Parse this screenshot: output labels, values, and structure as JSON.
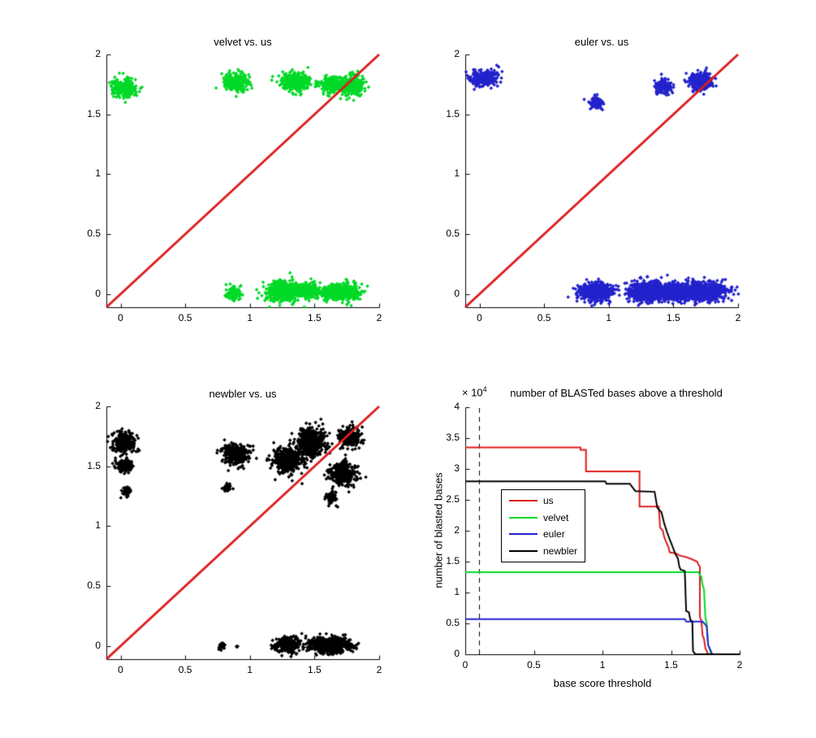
{
  "colors": {
    "us": "#dd1c1c",
    "velvet": "#00d926",
    "euler": "#2222cc",
    "newbler": "#000000",
    "axis": "#000000",
    "diagonal": "#dd1c1c",
    "background": "#ffffff"
  },
  "chart_data": [
    {
      "id": "velvet_vs_us",
      "type": "scatter",
      "title": "velvet vs. us",
      "color_key": "velvet",
      "xlim": [
        -0.11,
        2
      ],
      "ylim": [
        -0.11,
        2
      ],
      "xticks": [
        "0",
        "0.5",
        "1",
        "1.5",
        "2"
      ],
      "yticks": [
        "0",
        "0.5",
        "1",
        "1.5",
        "2"
      ],
      "diagonal_line": {
        "from": [
          -0.11,
          -0.11
        ],
        "to": [
          2,
          2
        ],
        "color_key": "diagonal"
      },
      "clusters": [
        {
          "cx": 0.03,
          "cy": 1.72,
          "sx": 0.045,
          "sy": 0.038,
          "n": 240
        },
        {
          "cx": 0.89,
          "cy": 1.77,
          "sx": 0.042,
          "sy": 0.038,
          "n": 270
        },
        {
          "cx": 1.35,
          "cy": 1.77,
          "sx": 0.055,
          "sy": 0.036,
          "n": 310
        },
        {
          "cx": 1.63,
          "cy": 1.75,
          "sx": 0.04,
          "sy": 0.032,
          "n": 230
        },
        {
          "cx": 1.79,
          "cy": 1.74,
          "sx": 0.045,
          "sy": 0.042,
          "n": 250
        },
        {
          "cx": 0.88,
          "cy": 0.01,
          "sx": 0.03,
          "sy": 0.026,
          "n": 140
        },
        {
          "cx": 1.28,
          "cy": 0.02,
          "sx": 0.075,
          "sy": 0.04,
          "n": 600
        },
        {
          "cx": 1.46,
          "cy": 0.03,
          "sx": 0.04,
          "sy": 0.032,
          "n": 160
        },
        {
          "cx": 1.7,
          "cy": 0.02,
          "sx": 0.075,
          "sy": 0.034,
          "n": 500
        }
      ]
    },
    {
      "id": "euler_vs_us",
      "type": "scatter",
      "title": "euler vs. us",
      "color_key": "euler",
      "xlim": [
        -0.11,
        2
      ],
      "ylim": [
        -0.11,
        2
      ],
      "xticks": [
        "0",
        "0.5",
        "1",
        "1.5",
        "2"
      ],
      "yticks": [
        "0",
        "0.5",
        "1",
        "1.5",
        "2"
      ],
      "diagonal_line": {
        "from": [
          -0.11,
          -0.11
        ],
        "to": [
          2,
          2
        ],
        "color_key": "diagonal"
      },
      "clusters": [
        {
          "cx": 0.03,
          "cy": 1.8,
          "sx": 0.05,
          "sy": 0.032,
          "n": 270
        },
        {
          "cx": 0.9,
          "cy": 1.59,
          "sx": 0.026,
          "sy": 0.024,
          "n": 95
        },
        {
          "cx": 1.42,
          "cy": 1.74,
          "sx": 0.032,
          "sy": 0.03,
          "n": 170
        },
        {
          "cx": 1.71,
          "cy": 1.78,
          "sx": 0.046,
          "sy": 0.036,
          "n": 310
        },
        {
          "cx": 0.9,
          "cy": 0.02,
          "sx": 0.065,
          "sy": 0.036,
          "n": 620
        },
        {
          "cx": 1.32,
          "cy": 0.02,
          "sx": 0.085,
          "sy": 0.042,
          "n": 700
        },
        {
          "cx": 1.55,
          "cy": 0.02,
          "sx": 0.07,
          "sy": 0.036,
          "n": 450
        },
        {
          "cx": 1.75,
          "cy": 0.02,
          "sx": 0.08,
          "sy": 0.036,
          "n": 650
        }
      ]
    },
    {
      "id": "newbler_vs_us",
      "type": "scatter",
      "title": "newbler vs. us",
      "color_key": "newbler",
      "xlim": [
        -0.11,
        2
      ],
      "ylim": [
        -0.11,
        2
      ],
      "xticks": [
        "0",
        "0.5",
        "1",
        "1.5",
        "2"
      ],
      "yticks": [
        "0",
        "0.5",
        "1",
        "1.5",
        "2"
      ],
      "diagonal_line": {
        "from": [
          -0.11,
          -0.11
        ],
        "to": [
          2,
          2
        ],
        "color_key": "diagonal"
      },
      "clusters": [
        {
          "cx": 0.02,
          "cy": 1.7,
          "sx": 0.045,
          "sy": 0.042,
          "n": 300
        },
        {
          "cx": 0.03,
          "cy": 1.5,
          "sx": 0.03,
          "sy": 0.026,
          "n": 150
        },
        {
          "cx": 0.05,
          "cy": 1.29,
          "sx": 0.018,
          "sy": 0.02,
          "n": 55
        },
        {
          "cx": 0.9,
          "cy": 1.6,
          "sx": 0.052,
          "sy": 0.042,
          "n": 320
        },
        {
          "cx": 0.83,
          "cy": 1.32,
          "sx": 0.014,
          "sy": 0.014,
          "n": 45
        },
        {
          "cx": 1.3,
          "cy": 1.55,
          "sx": 0.06,
          "sy": 0.052,
          "n": 420
        },
        {
          "cx": 1.47,
          "cy": 1.7,
          "sx": 0.055,
          "sy": 0.06,
          "n": 480
        },
        {
          "cx": 1.77,
          "cy": 1.74,
          "sx": 0.042,
          "sy": 0.042,
          "n": 230
        },
        {
          "cx": 1.72,
          "cy": 1.44,
          "sx": 0.052,
          "sy": 0.046,
          "n": 340
        },
        {
          "cx": 1.63,
          "cy": 1.24,
          "sx": 0.026,
          "sy": 0.026,
          "n": 85
        },
        {
          "cx": 0.78,
          "cy": 0.0,
          "sx": 0.014,
          "sy": 0.012,
          "n": 45
        },
        {
          "cx": 0.9,
          "cy": 0.0,
          "sx": 0.005,
          "sy": 0.005,
          "n": 4
        },
        {
          "cx": 1.3,
          "cy": 0.01,
          "sx": 0.048,
          "sy": 0.032,
          "n": 280
        },
        {
          "cx": 1.62,
          "cy": 0.01,
          "sx": 0.08,
          "sy": 0.032,
          "n": 650
        }
      ]
    },
    {
      "id": "blast_threshold",
      "type": "line",
      "title": "number of BLASTed bases above a threshold",
      "xlabel": "base score threshold",
      "ylabel": "number of blasted bases",
      "y_multiplier_base": "× 10",
      "y_multiplier_exp": "4",
      "y_scale_note": "y values in units of 10^4",
      "xlim": [
        0,
        2
      ],
      "ylim": [
        0,
        4
      ],
      "xticks": [
        "0",
        "0.5",
        "1",
        "1.5",
        "2"
      ],
      "yticks": [
        "0",
        "0.5",
        "1",
        "1.5",
        "2",
        "2.5",
        "3",
        "3.5",
        "4"
      ],
      "dashed_vline_x": 0.1,
      "legend": [
        {
          "label": "us",
          "color_key": "us"
        },
        {
          "label": "velvet",
          "color_key": "velvet"
        },
        {
          "label": "euler",
          "color_key": "euler"
        },
        {
          "label": "newbler",
          "color_key": "newbler"
        }
      ],
      "series": [
        {
          "name": "us",
          "color_key": "us",
          "points": [
            [
              0,
              3.35
            ],
            [
              0.84,
              3.35
            ],
            [
              0.84,
              3.31
            ],
            [
              0.88,
              3.31
            ],
            [
              0.88,
              2.96
            ],
            [
              1.27,
              2.96
            ],
            [
              1.27,
              2.39
            ],
            [
              1.41,
              2.39
            ],
            [
              1.42,
              2.05
            ],
            [
              1.44,
              2.0
            ],
            [
              1.45,
              1.9
            ],
            [
              1.46,
              1.84
            ],
            [
              1.48,
              1.74
            ],
            [
              1.49,
              1.65
            ],
            [
              1.54,
              1.63
            ],
            [
              1.56,
              1.6
            ],
            [
              1.6,
              1.58
            ],
            [
              1.64,
              1.55
            ],
            [
              1.67,
              1.52
            ],
            [
              1.69,
              1.5
            ],
            [
              1.7,
              1.45
            ],
            [
              1.71,
              1.42
            ],
            [
              1.71,
              0.6
            ],
            [
              1.72,
              0.55
            ],
            [
              1.73,
              0.3
            ],
            [
              1.74,
              0.25
            ],
            [
              1.75,
              0.1
            ],
            [
              1.76,
              0.05
            ],
            [
              1.77,
              0
            ]
          ]
        },
        {
          "name": "velvet",
          "color_key": "velvet",
          "points": [
            [
              0,
              1.33
            ],
            [
              1.7,
              1.33
            ],
            [
              1.71,
              1.28
            ],
            [
              1.72,
              1.26
            ],
            [
              1.73,
              1.12
            ],
            [
              1.74,
              1.05
            ],
            [
              1.75,
              0.6
            ],
            [
              1.76,
              0.5
            ],
            [
              1.77,
              0.15
            ],
            [
              1.78,
              0.1
            ],
            [
              1.79,
              0.02
            ],
            [
              1.8,
              0
            ]
          ]
        },
        {
          "name": "euler",
          "color_key": "euler",
          "points": [
            [
              0,
              0.57
            ],
            [
              1.6,
              0.57
            ],
            [
              1.61,
              0.53
            ],
            [
              1.73,
              0.53
            ],
            [
              1.75,
              0.48
            ],
            [
              1.76,
              0.45
            ],
            [
              1.77,
              0.15
            ],
            [
              1.78,
              0.1
            ],
            [
              1.79,
              0.05
            ],
            [
              1.8,
              0
            ]
          ]
        },
        {
          "name": "newbler",
          "color_key": "newbler",
          "points": [
            [
              0,
              2.8
            ],
            [
              1.02,
              2.8
            ],
            [
              1.03,
              2.76
            ],
            [
              1.2,
              2.76
            ],
            [
              1.22,
              2.7
            ],
            [
              1.24,
              2.64
            ],
            [
              1.38,
              2.63
            ],
            [
              1.4,
              2.37
            ],
            [
              1.43,
              2.3
            ],
            [
              1.45,
              2.12
            ],
            [
              1.47,
              1.98
            ],
            [
              1.49,
              1.86
            ],
            [
              1.51,
              1.75
            ],
            [
              1.53,
              1.63
            ],
            [
              1.55,
              1.55
            ],
            [
              1.56,
              1.42
            ],
            [
              1.57,
              1.37
            ],
            [
              1.6,
              1.35
            ],
            [
              1.61,
              0.7
            ],
            [
              1.63,
              0.68
            ],
            [
              1.64,
              0.56
            ],
            [
              1.655,
              0.53
            ],
            [
              1.66,
              0.05
            ],
            [
              1.67,
              0.02
            ],
            [
              1.68,
              0
            ],
            [
              2.0,
              0
            ]
          ]
        }
      ]
    }
  ]
}
